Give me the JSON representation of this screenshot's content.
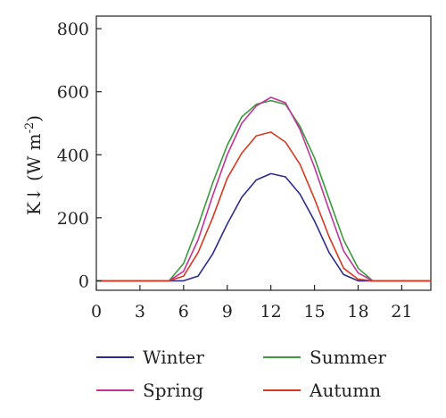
{
  "chart_data": {
    "type": "line",
    "title": "",
    "xlabel": "",
    "ylabel": {
      "main": "K↓ (W m",
      "sup": "-2",
      "close": ")"
    },
    "xlim": [
      0,
      23
    ],
    "ylim": [
      -30,
      840
    ],
    "xticks": [
      0,
      3,
      6,
      9,
      12,
      15,
      18,
      21
    ],
    "yticks": [
      0,
      200,
      400,
      600,
      800
    ],
    "grid": false,
    "legend_position": "bottom",
    "series": [
      {
        "name": "Winter",
        "color": "#2b2b8f",
        "x": [
          0,
          1,
          2,
          3,
          4,
          5,
          6,
          7,
          8,
          9,
          10,
          11,
          12,
          13,
          14,
          15,
          16,
          17,
          18,
          19,
          20,
          21,
          22,
          23
        ],
        "y": [
          0,
          0,
          0,
          0,
          0,
          0,
          0,
          15,
          85,
          180,
          265,
          320,
          340,
          330,
          275,
          190,
          90,
          20,
          0,
          0,
          0,
          0,
          0,
          0
        ]
      },
      {
        "name": "Summer",
        "color": "#3a9a3a",
        "x": [
          0,
          1,
          2,
          3,
          4,
          5,
          6,
          7,
          8,
          9,
          10,
          11,
          12,
          13,
          14,
          15,
          16,
          17,
          18,
          19,
          20,
          21,
          22,
          23
        ],
        "y": [
          0,
          0,
          0,
          0,
          0,
          0,
          55,
          175,
          310,
          430,
          520,
          560,
          572,
          560,
          490,
          390,
          260,
          130,
          40,
          0,
          0,
          0,
          0,
          0
        ]
      },
      {
        "name": "Spring",
        "color": "#c2339a",
        "x": [
          0,
          1,
          2,
          3,
          4,
          5,
          6,
          7,
          8,
          9,
          10,
          11,
          12,
          13,
          14,
          15,
          16,
          17,
          18,
          19,
          20,
          21,
          22,
          23
        ],
        "y": [
          0,
          0,
          0,
          0,
          0,
          0,
          30,
          130,
          270,
          400,
          500,
          555,
          582,
          565,
          480,
          360,
          225,
          95,
          25,
          0,
          0,
          0,
          0,
          0
        ]
      },
      {
        "name": "Autumn",
        "color": "#d6391f",
        "x": [
          0,
          1,
          2,
          3,
          4,
          5,
          6,
          7,
          8,
          9,
          10,
          11,
          12,
          13,
          14,
          15,
          16,
          17,
          18,
          19,
          20,
          21,
          22,
          23
        ],
        "y": [
          0,
          0,
          0,
          0,
          0,
          0,
          15,
          90,
          200,
          325,
          405,
          460,
          472,
          440,
          370,
          260,
          140,
          40,
          5,
          0,
          0,
          0,
          0,
          0
        ]
      }
    ],
    "legend": [
      {
        "name": "Winter",
        "color": "#2b2b8f"
      },
      {
        "name": "Summer",
        "color": "#3a9a3a"
      },
      {
        "name": "Spring",
        "color": "#c2339a"
      },
      {
        "name": "Autumn",
        "color": "#d6391f"
      }
    ]
  }
}
